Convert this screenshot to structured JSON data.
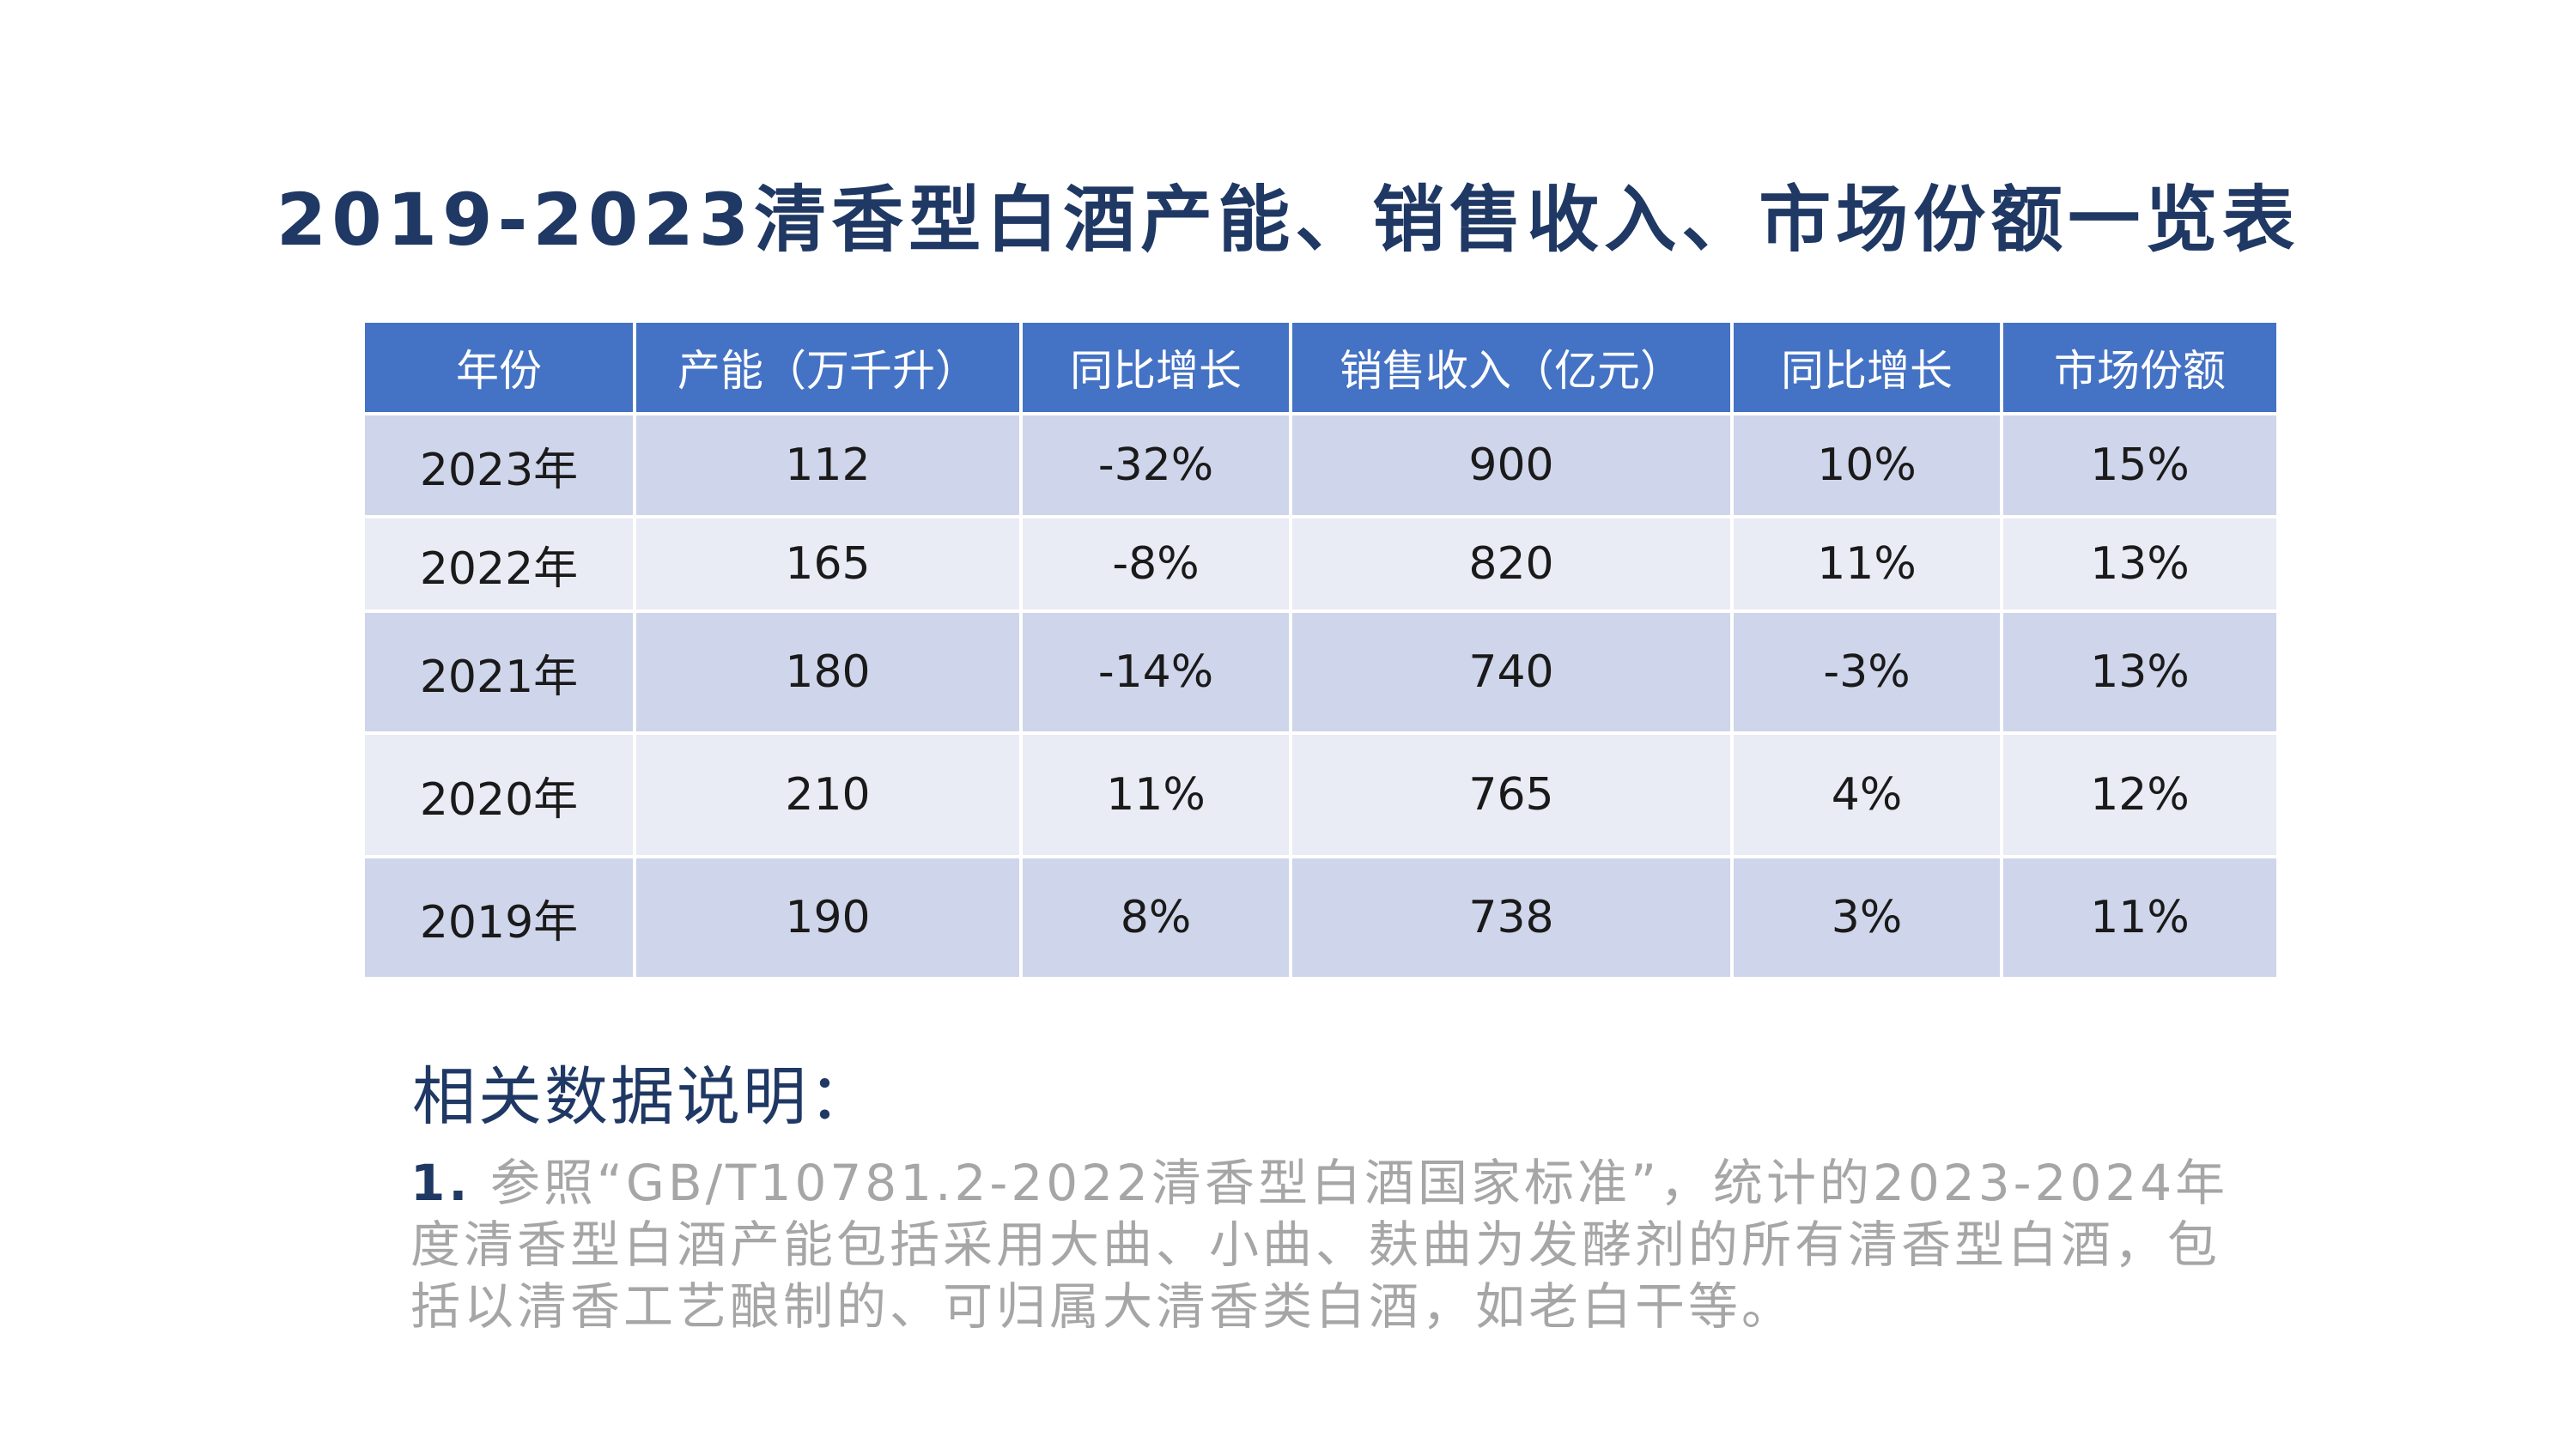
{
  "title": "2019-2023清香型白酒产能、销售收入、市场份额一览表",
  "table": {
    "headers": [
      "年份",
      "产能（万千升）",
      "同比增长",
      "销售收入（亿元）",
      "同比增长",
      "市场份额"
    ],
    "rows": [
      [
        "2023年",
        "112",
        "-32%",
        "900",
        "10%",
        "15%"
      ],
      [
        "2022年",
        "165",
        "-8%",
        "820",
        "11%",
        "13%"
      ],
      [
        "2021年",
        "180",
        "-14%",
        "740",
        "-3%",
        "13%"
      ],
      [
        "2020年",
        "210",
        "11%",
        "765",
        "4%",
        "12%"
      ],
      [
        "2019年",
        "190",
        "8%",
        "738",
        "3%",
        "11%"
      ]
    ]
  },
  "notes": {
    "heading": "相关数据说明：",
    "items": [
      {
        "number": "1.",
        "text": " 参照“GB/T10781.2-2022清香型白酒国家标准”，统计的2023-2024年度清香型白酒产能包括采用大曲、小曲、麸曲为发酵剂的所有清香型白酒，包括以清香工艺酿制的、可归属大清香类白酒，如老白干等。"
      }
    ]
  },
  "colors": {
    "title": "#1f3864",
    "header_bg": "#4472c4",
    "row_odd_bg": "#cfd5ea",
    "row_even_bg": "#e9ebf5",
    "notes_text": "#a6a6a6"
  }
}
